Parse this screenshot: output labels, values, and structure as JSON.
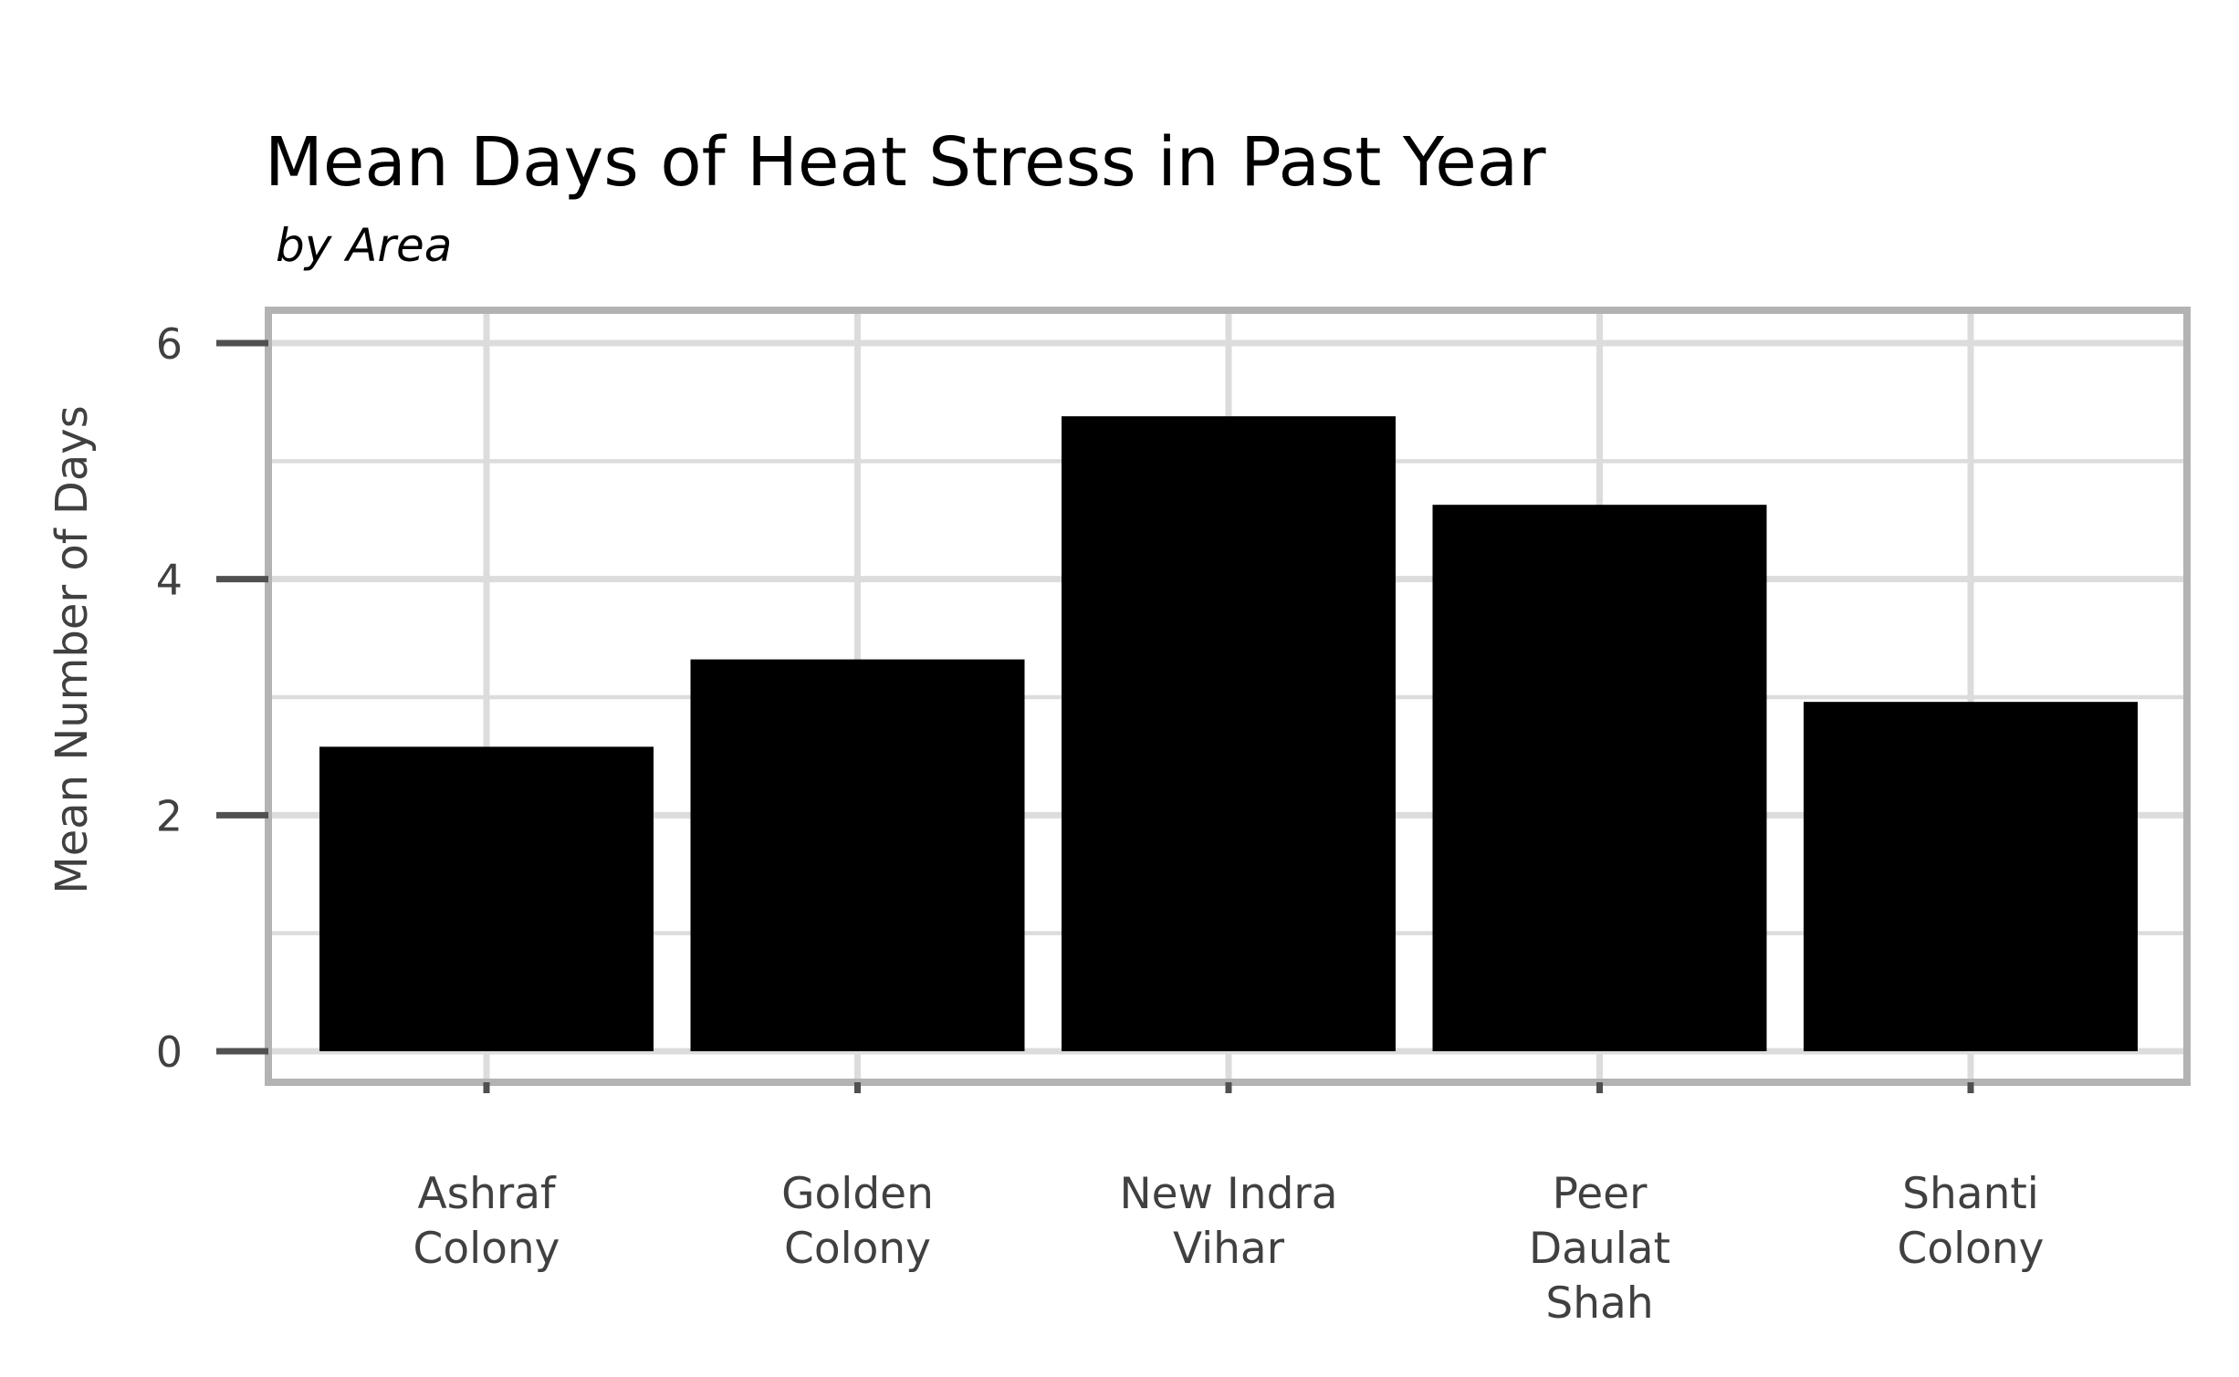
{
  "chart_data": {
    "type": "bar",
    "title": "Mean Days of Heat Stress in Past Year",
    "subtitle": "by Area",
    "ylabel": "Mean Number of Days",
    "xlabel": "",
    "categories": [
      [
        "Ashraf",
        "Colony"
      ],
      [
        "Golden",
        "Colony"
      ],
      [
        "New Indra",
        "Vihar"
      ],
      [
        "Peer",
        "Daulat",
        "Shah"
      ],
      [
        "Shanti",
        "Colony"
      ]
    ],
    "values": [
      2.58,
      3.32,
      5.38,
      4.63,
      2.96
    ],
    "ylim": [
      0,
      6
    ],
    "yticks": [
      0,
      2,
      4,
      6
    ],
    "ytick_labels": [
      "0",
      "2",
      "4",
      "6"
    ],
    "grid": true,
    "legend": "none",
    "colors": {
      "bar": "#000000",
      "grid": "#dcdcdc",
      "panel_border": "#b3b3b3",
      "axis_text": "#404040"
    }
  }
}
